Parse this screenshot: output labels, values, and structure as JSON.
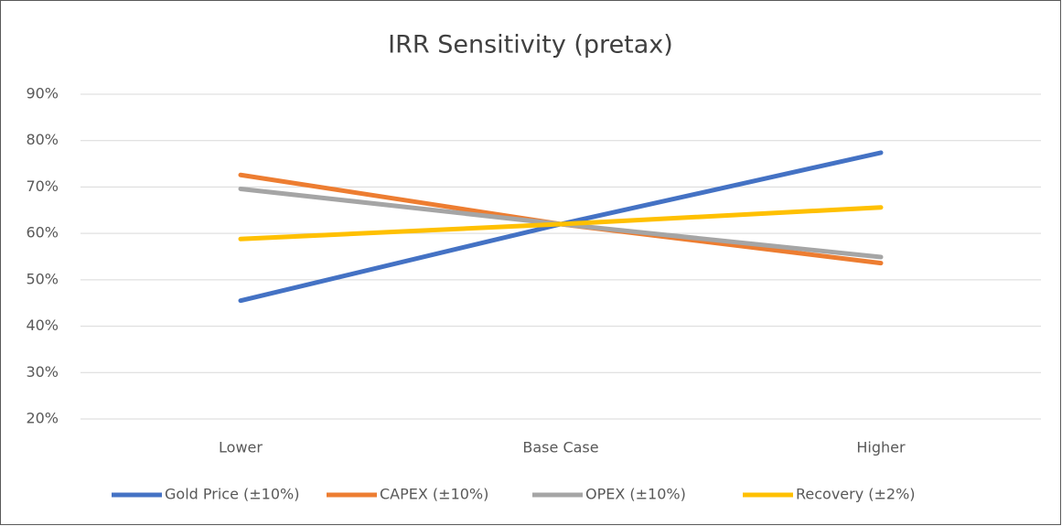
{
  "chart_data": {
    "type": "line",
    "title": "IRR Sensitivity (pretax)",
    "categories": [
      "Lower",
      "Base Case",
      "Higher"
    ],
    "series": [
      {
        "name": "Gold Price (±10%)",
        "color": "#4472c4",
        "values": [
          45.5,
          62,
          77.4
        ]
      },
      {
        "name": "CAPEX (±10%)",
        "color": "#ed7d31",
        "values": [
          72.6,
          62,
          53.6
        ]
      },
      {
        "name": "OPEX (±10%)",
        "color": "#a5a5a5",
        "values": [
          69.6,
          62,
          54.9
        ]
      },
      {
        "name": "Recovery (±2%)",
        "color": "#ffc000",
        "values": [
          58.8,
          62,
          65.6
        ]
      }
    ],
    "ylim": [
      20,
      90
    ],
    "yticks": [
      {
        "value": 20,
        "label": "20%"
      },
      {
        "value": 30,
        "label": "30%"
      },
      {
        "value": 40,
        "label": "40%"
      },
      {
        "value": 50,
        "label": "50%"
      },
      {
        "value": 60,
        "label": "60%"
      },
      {
        "value": 70,
        "label": "70%"
      },
      {
        "value": 80,
        "label": "80%"
      },
      {
        "value": 90,
        "label": "90%"
      }
    ],
    "grid": true,
    "legend": "bottom"
  }
}
